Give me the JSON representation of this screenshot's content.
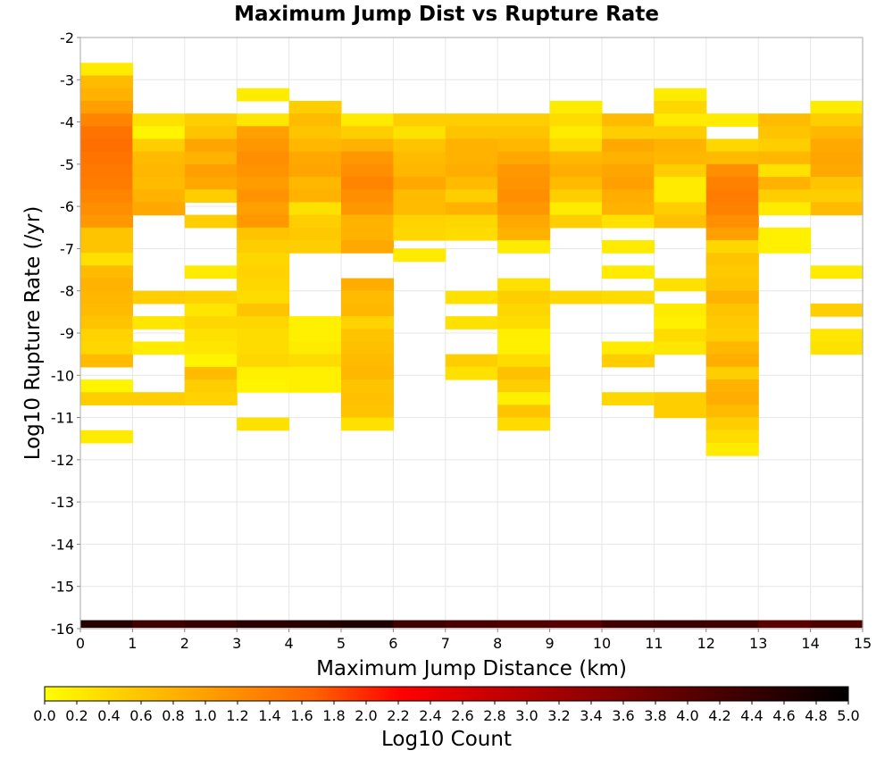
{
  "chart_data": {
    "type": "heatmap",
    "title": "Maximum Jump Dist vs Rupture Rate",
    "xlabel": "Maximum Jump Distance (km)",
    "ylabel": "Log10 Rupture Rate (/yr)",
    "xlim": [
      0,
      15
    ],
    "ylim": [
      -16,
      -2
    ],
    "x_ticks": [
      "0",
      "1",
      "2",
      "3",
      "4",
      "5",
      "6",
      "7",
      "8",
      "9",
      "10",
      "11",
      "12",
      "13",
      "14",
      "15"
    ],
    "y_ticks": [
      "-2",
      "-3",
      "-4",
      "-5",
      "-6",
      "-7",
      "-8",
      "-9",
      "-10",
      "-11",
      "-12",
      "-13",
      "-14",
      "-15",
      "-16"
    ],
    "bin_width_x": 1,
    "bin_height_y": 0.3,
    "grid": true,
    "colorbar": {
      "label": "Log10 Count",
      "min": 0.0,
      "max": 5.0,
      "ticks": [
        "0.0",
        "0.2",
        "0.4",
        "0.6",
        "0.8",
        "1.0",
        "1.2",
        "1.4",
        "1.6",
        "1.8",
        "2.0",
        "2.2",
        "2.4",
        "2.6",
        "2.8",
        "3.0",
        "3.2",
        "3.4",
        "3.6",
        "3.8",
        "4.0",
        "4.2",
        "4.4",
        "4.6",
        "4.8",
        "5.0"
      ],
      "colors": [
        "#ffff00",
        "#ffc800",
        "#ff9600",
        "#ff6400",
        "#ff0000",
        "#c80000",
        "#960000",
        "#640000",
        "#320000",
        "#000000"
      ]
    },
    "columns": [
      {
        "x": 0,
        "cells": [
          [
            -2.75,
            0.2
          ],
          [
            -3.05,
            0.7
          ],
          [
            -3.35,
            0.8
          ],
          [
            -3.65,
            1.0
          ],
          [
            -3.95,
            1.3
          ],
          [
            -4.25,
            1.5
          ],
          [
            -4.55,
            1.55
          ],
          [
            -4.85,
            1.5
          ],
          [
            -5.15,
            1.45
          ],
          [
            -5.45,
            1.4
          ],
          [
            -5.75,
            1.3
          ],
          [
            -6.05,
            1.2
          ],
          [
            -6.35,
            1.1
          ],
          [
            -6.65,
            0.6
          ],
          [
            -6.95,
            0.6
          ],
          [
            -7.25,
            0.3
          ],
          [
            -7.55,
            0.7
          ],
          [
            -7.85,
            0.8
          ],
          [
            -8.15,
            0.75
          ],
          [
            -8.45,
            0.7
          ],
          [
            -8.75,
            0.6
          ],
          [
            -9.05,
            0.45
          ],
          [
            -9.35,
            0.4
          ],
          [
            -9.65,
            0.7
          ],
          [
            -10.25,
            0.1
          ],
          [
            -10.55,
            0.5
          ],
          [
            -11.45,
            0.2
          ]
        ]
      },
      {
        "x": 1,
        "cells": [
          [
            -3.95,
            0.3
          ],
          [
            -4.25,
            0.1
          ],
          [
            -4.55,
            0.5
          ],
          [
            -4.85,
            0.7
          ],
          [
            -5.15,
            0.75
          ],
          [
            -5.45,
            0.7
          ],
          [
            -5.75,
            0.8
          ],
          [
            -6.05,
            0.9
          ],
          [
            -8.15,
            0.5
          ],
          [
            -8.75,
            0.25
          ],
          [
            -9.35,
            0.2
          ],
          [
            -10.55,
            0.5
          ]
        ]
      },
      {
        "x": 2,
        "cells": [
          [
            -3.95,
            0.5
          ],
          [
            -4.25,
            0.6
          ],
          [
            -4.55,
            0.95
          ],
          [
            -4.85,
            0.8
          ],
          [
            -5.15,
            1.0
          ],
          [
            -5.45,
            0.9
          ],
          [
            -5.75,
            0.5
          ],
          [
            -6.35,
            0.5
          ],
          [
            -7.55,
            0.2
          ],
          [
            -8.15,
            0.45
          ],
          [
            -8.45,
            0.25
          ],
          [
            -8.75,
            0.4
          ],
          [
            -9.05,
            0.3
          ],
          [
            -9.35,
            0.25
          ],
          [
            -9.65,
            0.1
          ],
          [
            -9.95,
            0.7
          ],
          [
            -10.25,
            0.5
          ],
          [
            -10.55,
            0.45
          ]
        ]
      },
      {
        "x": 3,
        "cells": [
          [
            -3.35,
            0.2
          ],
          [
            -3.95,
            0.25
          ],
          [
            -4.25,
            1.0
          ],
          [
            -4.55,
            1.1
          ],
          [
            -4.85,
            1.2
          ],
          [
            -5.15,
            1.15
          ],
          [
            -5.45,
            1.05
          ],
          [
            -5.75,
            1.15
          ],
          [
            -6.05,
            1.0
          ],
          [
            -6.35,
            1.1
          ],
          [
            -6.65,
            0.6
          ],
          [
            -6.95,
            0.5
          ],
          [
            -7.25,
            0.4
          ],
          [
            -7.55,
            0.45
          ],
          [
            -7.85,
            0.4
          ],
          [
            -8.15,
            0.35
          ],
          [
            -8.45,
            0.6
          ],
          [
            -8.75,
            0.4
          ],
          [
            -9.05,
            0.35
          ],
          [
            -9.35,
            0.35
          ],
          [
            -9.65,
            0.4
          ],
          [
            -9.95,
            0.15
          ],
          [
            -10.25,
            0.1
          ],
          [
            -11.15,
            0.3
          ]
        ]
      },
      {
        "x": 4,
        "cells": [
          [
            -3.65,
            0.5
          ],
          [
            -3.95,
            0.7
          ],
          [
            -4.25,
            0.6
          ],
          [
            -4.55,
            0.75
          ],
          [
            -4.85,
            0.9
          ],
          [
            -5.15,
            0.95
          ],
          [
            -5.45,
            0.75
          ],
          [
            -5.75,
            0.8
          ],
          [
            -6.05,
            0.3
          ],
          [
            -6.35,
            0.5
          ],
          [
            -6.65,
            0.55
          ],
          [
            -6.95,
            0.5
          ],
          [
            -8.75,
            0.15
          ],
          [
            -9.05,
            0.15
          ],
          [
            -9.35,
            0.2
          ],
          [
            -9.65,
            0.35
          ],
          [
            -9.95,
            0.15
          ],
          [
            -10.25,
            0.15
          ]
        ]
      },
      {
        "x": 5,
        "cells": [
          [
            -3.95,
            0.2
          ],
          [
            -4.25,
            0.5
          ],
          [
            -4.55,
            0.8
          ],
          [
            -4.85,
            1.1
          ],
          [
            -5.15,
            1.2
          ],
          [
            -5.45,
            1.3
          ],
          [
            -5.75,
            1.2
          ],
          [
            -6.05,
            1.1
          ],
          [
            -6.35,
            0.8
          ],
          [
            -6.65,
            0.8
          ],
          [
            -6.95,
            0.9
          ],
          [
            -7.85,
            0.85
          ],
          [
            -8.15,
            0.7
          ],
          [
            -8.45,
            0.75
          ],
          [
            -8.75,
            0.45
          ],
          [
            -9.05,
            0.6
          ],
          [
            -9.35,
            0.65
          ],
          [
            -9.65,
            0.7
          ],
          [
            -9.95,
            0.75
          ],
          [
            -10.25,
            0.6
          ],
          [
            -10.55,
            0.65
          ],
          [
            -10.85,
            0.6
          ],
          [
            -11.15,
            0.3
          ]
        ]
      },
      {
        "x": 6,
        "cells": [
          [
            -3.95,
            0.5
          ],
          [
            -4.25,
            0.3
          ],
          [
            -4.55,
            0.6
          ],
          [
            -4.85,
            0.7
          ],
          [
            -5.15,
            0.75
          ],
          [
            -5.45,
            0.9
          ],
          [
            -5.75,
            0.7
          ],
          [
            -6.05,
            0.7
          ],
          [
            -6.35,
            0.45
          ],
          [
            -6.65,
            0.4
          ],
          [
            -7.15,
            0.2
          ]
        ]
      },
      {
        "x": 7,
        "cells": [
          [
            -3.95,
            0.5
          ],
          [
            -4.25,
            0.6
          ],
          [
            -4.55,
            0.8
          ],
          [
            -4.85,
            0.8
          ],
          [
            -5.15,
            0.85
          ],
          [
            -5.45,
            0.7
          ],
          [
            -5.75,
            0.5
          ],
          [
            -6.05,
            0.8
          ],
          [
            -6.35,
            0.4
          ],
          [
            -6.65,
            0.35
          ],
          [
            -8.15,
            0.3
          ],
          [
            -8.75,
            0.3
          ],
          [
            -9.65,
            0.5
          ],
          [
            -9.95,
            0.3
          ]
        ]
      },
      {
        "x": 8,
        "cells": [
          [
            -3.95,
            0.5
          ],
          [
            -4.25,
            0.6
          ],
          [
            -4.55,
            0.75
          ],
          [
            -4.85,
            0.9
          ],
          [
            -5.15,
            1.1
          ],
          [
            -5.45,
            1.15
          ],
          [
            -5.75,
            1.2
          ],
          [
            -6.05,
            1.1
          ],
          [
            -6.35,
            0.9
          ],
          [
            -6.65,
            0.8
          ],
          [
            -6.95,
            0.2
          ],
          [
            -7.85,
            0.3
          ],
          [
            -8.15,
            0.5
          ],
          [
            -8.45,
            0.4
          ],
          [
            -8.75,
            0.35
          ],
          [
            -9.05,
            0.15
          ],
          [
            -9.35,
            0.15
          ],
          [
            -9.65,
            0.35
          ],
          [
            -9.95,
            0.65
          ],
          [
            -10.25,
            0.5
          ],
          [
            -10.55,
            0.15
          ],
          [
            -10.85,
            0.6
          ],
          [
            -11.15,
            0.35
          ]
        ]
      },
      {
        "x": 9,
        "cells": [
          [
            -3.65,
            0.2
          ],
          [
            -3.95,
            0.35
          ],
          [
            -4.25,
            0.2
          ],
          [
            -4.55,
            0.35
          ],
          [
            -4.85,
            0.75
          ],
          [
            -5.15,
            0.85
          ],
          [
            -5.45,
            0.7
          ],
          [
            -5.75,
            0.5
          ],
          [
            -6.05,
            0.2
          ],
          [
            -6.35,
            0.5
          ],
          [
            -8.15,
            0.4
          ]
        ]
      },
      {
        "x": 10,
        "cells": [
          [
            -3.95,
            0.7
          ],
          [
            -4.25,
            0.5
          ],
          [
            -4.55,
            0.9
          ],
          [
            -4.85,
            0.8
          ],
          [
            -5.15,
            0.95
          ],
          [
            -5.45,
            1.0
          ],
          [
            -5.75,
            0.85
          ],
          [
            -6.05,
            0.8
          ],
          [
            -6.35,
            0.3
          ],
          [
            -6.95,
            0.2
          ],
          [
            -7.55,
            0.2
          ],
          [
            -8.15,
            0.35
          ],
          [
            -9.35,
            0.2
          ],
          [
            -9.65,
            0.5
          ],
          [
            -10.55,
            0.4
          ]
        ]
      },
      {
        "x": 11,
        "cells": [
          [
            -3.35,
            0.2
          ],
          [
            -3.65,
            0.4
          ],
          [
            -3.95,
            0.2
          ],
          [
            -4.25,
            0.5
          ],
          [
            -4.55,
            0.8
          ],
          [
            -4.85,
            0.75
          ],
          [
            -5.15,
            0.5
          ],
          [
            -5.45,
            0.2
          ],
          [
            -5.75,
            0.2
          ],
          [
            -6.05,
            0.5
          ],
          [
            -6.35,
            0.65
          ],
          [
            -7.85,
            0.3
          ],
          [
            -8.45,
            0.2
          ],
          [
            -8.75,
            0.15
          ],
          [
            -9.05,
            0.35
          ],
          [
            -9.35,
            0.25
          ],
          [
            -10.55,
            0.5
          ],
          [
            -10.85,
            0.5
          ]
        ]
      },
      {
        "x": 12,
        "cells": [
          [
            -3.95,
            0.2
          ],
          [
            -4.55,
            0.4
          ],
          [
            -4.85,
            0.7
          ],
          [
            -5.15,
            1.2
          ],
          [
            -5.45,
            1.35
          ],
          [
            -5.75,
            1.4
          ],
          [
            -6.05,
            1.35
          ],
          [
            -6.35,
            1.2
          ],
          [
            -6.65,
            1.0
          ],
          [
            -6.95,
            0.4
          ],
          [
            -7.25,
            0.6
          ],
          [
            -7.55,
            0.55
          ],
          [
            -7.85,
            0.6
          ],
          [
            -8.15,
            0.8
          ],
          [
            -8.45,
            0.6
          ],
          [
            -8.75,
            0.55
          ],
          [
            -9.05,
            0.5
          ],
          [
            -9.35,
            0.75
          ],
          [
            -9.65,
            0.85
          ],
          [
            -9.95,
            0.5
          ],
          [
            -10.25,
            0.8
          ],
          [
            -10.55,
            0.85
          ],
          [
            -10.85,
            0.7
          ],
          [
            -11.15,
            0.5
          ],
          [
            -11.45,
            0.35
          ],
          [
            -11.75,
            0.2
          ]
        ]
      },
      {
        "x": 13,
        "cells": [
          [
            -3.95,
            0.7
          ],
          [
            -4.25,
            0.6
          ],
          [
            -4.55,
            0.5
          ],
          [
            -4.85,
            0.75
          ],
          [
            -5.15,
            0.3
          ],
          [
            -5.45,
            0.8
          ],
          [
            -5.75,
            0.5
          ],
          [
            -6.05,
            0.2
          ],
          [
            -6.65,
            0.15
          ],
          [
            -6.95,
            0.15
          ]
        ]
      },
      {
        "x": 14,
        "cells": [
          [
            -3.65,
            0.2
          ],
          [
            -3.95,
            0.5
          ],
          [
            -4.25,
            0.75
          ],
          [
            -4.55,
            0.9
          ],
          [
            -4.85,
            0.95
          ],
          [
            -5.15,
            0.9
          ],
          [
            -5.45,
            0.6
          ],
          [
            -5.75,
            0.5
          ],
          [
            -6.05,
            0.7
          ],
          [
            -7.55,
            0.2
          ],
          [
            -8.45,
            0.5
          ],
          [
            -9.05,
            0.25
          ],
          [
            -9.35,
            0.3
          ]
        ]
      }
    ],
    "bottom_row": {
      "y": -15.95,
      "values": [
        4.6,
        4.3,
        4.4,
        4.55,
        4.6,
        4.65,
        4.3,
        4.2,
        4.1,
        4.05,
        4.3,
        4.35,
        4.3,
        4.0,
        4.15
      ]
    }
  }
}
